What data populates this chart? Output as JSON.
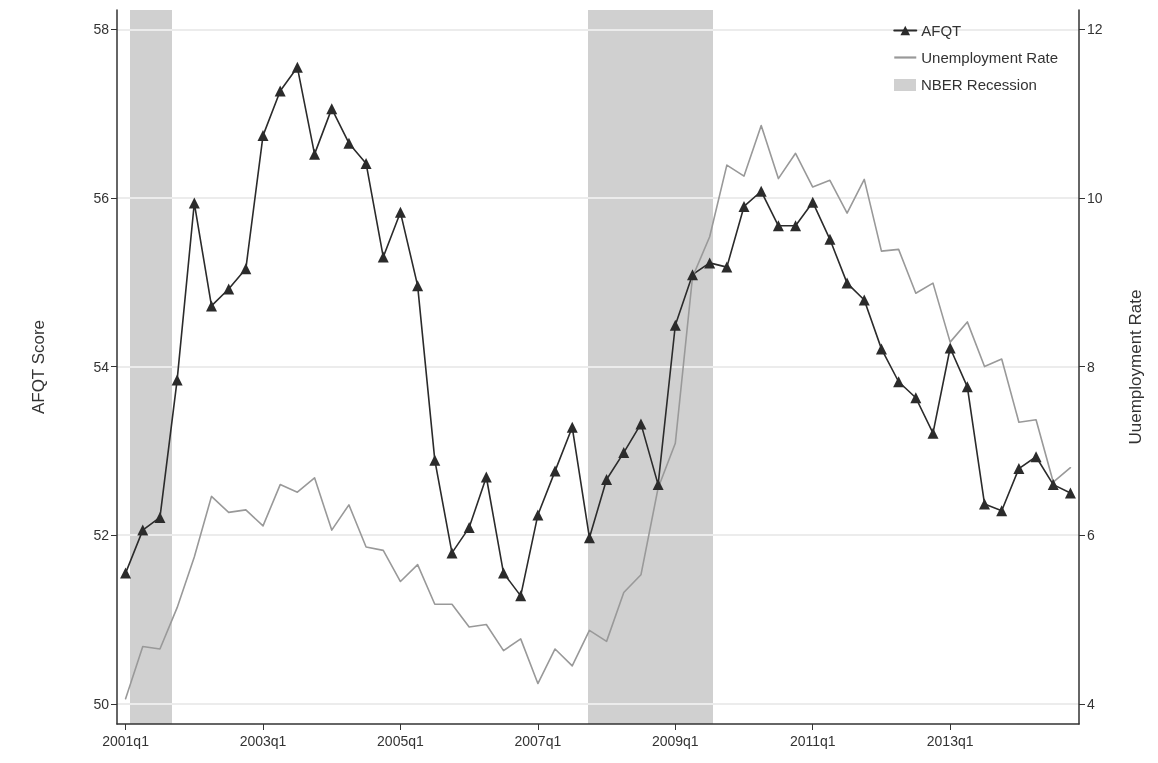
{
  "chart_data": {
    "type": "line",
    "ylabel": "AFQT Score",
    "y2label": "Uuemployment Rate",
    "categories": [
      "2001q1",
      null,
      null,
      null,
      null,
      null,
      null,
      null,
      "2003q1",
      null,
      null,
      null,
      null,
      null,
      null,
      null,
      "2005q1",
      null,
      null,
      null,
      null,
      null,
      null,
      null,
      "2007q1",
      null,
      null,
      null,
      null,
      null,
      null,
      null,
      "2009q1",
      null,
      null,
      null,
      null,
      null,
      null,
      null,
      "2011q1",
      null,
      null,
      null,
      null,
      null,
      null,
      null,
      "2013q1",
      null,
      null,
      null,
      null,
      null,
      null,
      null
    ],
    "series": [
      {
        "name": "AFQT",
        "color": "#2b2b2b",
        "marker": "triangle",
        "values": [
          51.55,
          52.06,
          52.21,
          53.84,
          55.94,
          54.72,
          54.92,
          55.16,
          56.74,
          57.27,
          57.55,
          56.52,
          57.06,
          56.65,
          56.41,
          55.3,
          55.83,
          54.96,
          52.89,
          51.79,
          52.09,
          52.69,
          51.55,
          51.28,
          52.24,
          52.76,
          53.28,
          51.97,
          52.66,
          52.98,
          53.32,
          52.6,
          54.49,
          55.09,
          55.23,
          55.18,
          55.9,
          56.08,
          55.67,
          55.67,
          55.95,
          55.51,
          54.99,
          54.79,
          54.21,
          53.82,
          53.63,
          53.21,
          54.22,
          53.76,
          52.37,
          52.29,
          52.79,
          52.93,
          52.6,
          52.5
        ]
      },
      {
        "name": "Unemployment Rate",
        "color": "#999999",
        "marker": "none",
        "axis": "y2",
        "values": [
          4.06,
          4.68,
          4.65,
          5.14,
          5.74,
          6.46,
          6.27,
          6.3,
          6.11,
          6.6,
          6.51,
          6.68,
          6.06,
          6.36,
          5.86,
          5.82,
          5.45,
          5.65,
          5.18,
          5.18,
          4.91,
          4.94,
          4.63,
          4.77,
          4.24,
          4.65,
          4.45,
          4.87,
          4.74,
          5.32,
          5.53,
          6.56,
          7.09,
          9.06,
          9.54,
          10.39,
          10.26,
          10.86,
          10.23,
          10.53,
          10.13,
          10.21,
          9.82,
          10.22,
          9.37,
          9.39,
          8.87,
          8.99,
          8.29,
          8.53,
          8,
          8.09,
          7.34,
          7.37,
          6.63,
          6.8
        ]
      }
    ],
    "annotations": [
      "NBER Recession"
    ],
    "ylim": [
      49.76,
      58.23
    ],
    "yticks": [
      50,
      52,
      54,
      56,
      58
    ],
    "y2lim": [
      3.76,
      12.23
    ],
    "y2ticks": [
      4,
      6,
      8,
      10,
      12
    ],
    "grid": "y",
    "legend": "top right",
    "line_style": "solid"
  }
}
